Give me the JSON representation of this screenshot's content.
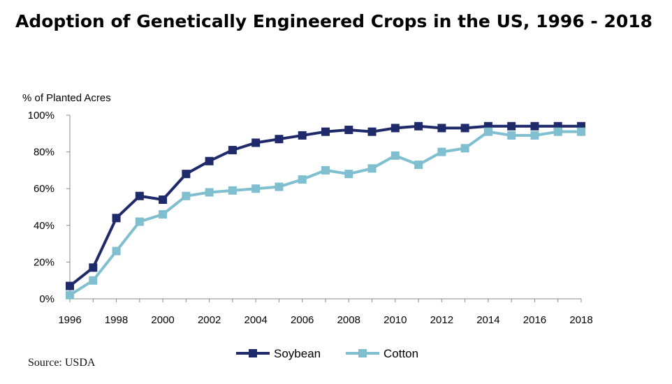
{
  "chart_data": {
    "type": "line",
    "title": "Adoption of Genetically Engineered Crops in the US, 1996 - 2018",
    "ylabel": "% of Planted Acres",
    "xlabel": "",
    "source": "Source: USDA",
    "x": [
      1996,
      1997,
      1998,
      1999,
      2000,
      2001,
      2002,
      2003,
      2004,
      2005,
      2006,
      2007,
      2008,
      2009,
      2010,
      2011,
      2012,
      2013,
      2014,
      2015,
      2016,
      2017,
      2018
    ],
    "xticks": [
      "1996",
      "1998",
      "2000",
      "2002",
      "2004",
      "2006",
      "2008",
      "2010",
      "2012",
      "2014",
      "2016",
      "2018"
    ],
    "yticks": [
      "0%",
      "20%",
      "40%",
      "60%",
      "80%",
      "100%"
    ],
    "ylim": [
      0,
      100
    ],
    "grid": false,
    "legend_position": "bottom",
    "series": [
      {
        "name": "Soybean",
        "color": "#1f2a6b",
        "values": [
          7,
          17,
          44,
          56,
          54,
          68,
          75,
          81,
          85,
          87,
          89,
          91,
          92,
          91,
          93,
          94,
          93,
          93,
          94,
          94,
          94,
          94,
          94
        ]
      },
      {
        "name": "Cotton",
        "color": "#7fbfd0",
        "values": [
          2,
          10,
          26,
          42,
          46,
          56,
          58,
          59,
          60,
          61,
          65,
          70,
          68,
          71,
          78,
          73,
          80,
          82,
          91,
          89,
          89,
          91,
          91
        ]
      }
    ]
  }
}
